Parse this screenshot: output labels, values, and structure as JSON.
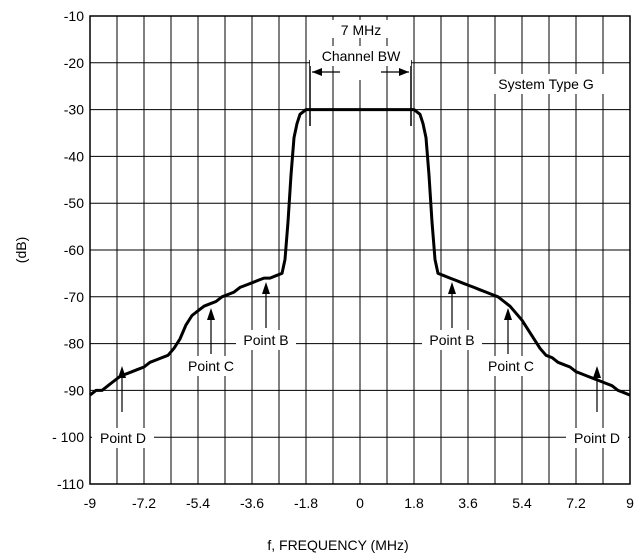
{
  "chart_data": {
    "type": "line",
    "title": "",
    "xlabel": "f, FREQUENCY (MHz)",
    "ylabel": "(dB)",
    "xlim": [
      -9,
      9
    ],
    "ylim": [
      -110,
      -10
    ],
    "x_ticks": [
      "-9",
      "-7.2",
      "-5.4",
      "-3.6",
      "-1.8",
      "0",
      "1.8",
      "3.6",
      "5.4",
      "7.2",
      "9"
    ],
    "y_ticks": [
      "-10",
      "-20",
      "-30",
      "-40",
      "-50",
      "-60",
      "-70",
      "-80",
      "-90",
      "- 100",
      "-110"
    ],
    "grid": true,
    "series": [
      {
        "x": [
          -9.0,
          -8.8,
          -8.6,
          -8.4,
          -8.2,
          -8.0,
          -7.8,
          -7.6,
          -7.4,
          -7.2,
          -7.0,
          -6.8,
          -6.6,
          -6.4,
          -6.2,
          -6.0,
          -5.8,
          -5.6,
          -5.4,
          -5.2,
          -5.0,
          -4.8,
          -4.6,
          -4.4,
          -4.2,
          -4.0,
          -3.8,
          -3.6,
          -3.4,
          -3.2,
          -3.0,
          -2.8,
          -2.6,
          -2.5,
          -2.4,
          -2.3,
          -2.2,
          -2.1,
          -2.0,
          -1.9,
          -1.8,
          -1.5,
          -1.0,
          -0.5,
          0.0,
          0.5,
          1.0,
          1.5,
          1.8,
          1.9,
          2.0,
          2.1,
          2.2,
          2.3,
          2.4,
          2.5,
          2.6,
          2.8,
          3.0,
          3.2,
          3.4,
          3.6,
          3.8,
          4.0,
          4.2,
          4.4,
          4.6,
          4.8,
          5.0,
          5.2,
          5.4,
          5.6,
          5.8,
          6.0,
          6.2,
          6.4,
          6.6,
          6.8,
          7.0,
          7.2,
          7.4,
          7.6,
          7.8,
          8.0,
          8.2,
          8.4,
          8.6,
          8.8,
          9.0
        ],
        "y": [
          -91,
          -90,
          -90,
          -89,
          -88,
          -87,
          -86.5,
          -86,
          -85.5,
          -85,
          -84,
          -83.5,
          -83,
          -82.5,
          -81,
          -79,
          -76,
          -74,
          -73,
          -72,
          -71.5,
          -71,
          -70,
          -69.5,
          -69,
          -68,
          -67.5,
          -67,
          -66.5,
          -66,
          -66,
          -65.5,
          -65,
          -62,
          -54,
          -44,
          -36,
          -33,
          -31,
          -30.5,
          -30,
          -30,
          -30,
          -30,
          -30,
          -30,
          -30,
          -30,
          -30,
          -30.5,
          -31,
          -33,
          -36,
          -44,
          -54,
          -62,
          -65,
          -65.5,
          -66,
          -66.5,
          -67,
          -67.5,
          -68,
          -68.5,
          -69,
          -69.5,
          -70,
          -71,
          -72,
          -73.5,
          -75,
          -77,
          -79,
          -81,
          -82.5,
          -83,
          -84,
          -84.5,
          -85,
          -86,
          -86.5,
          -87,
          -87.5,
          -88,
          -88.5,
          -89,
          -90,
          -90.5,
          -91
        ]
      }
    ],
    "annotations": [
      {
        "text": "System Type G"
      },
      {
        "text": "7 MHz"
      },
      {
        "text": "Channel BW"
      },
      {
        "text": "Point B",
        "x": -2.7,
        "y": -65.5
      },
      {
        "text": "Point C",
        "x": -4.8,
        "y": -71
      },
      {
        "text": "Point D",
        "x": -7.8,
        "y": -86.5
      },
      {
        "text": "Point B",
        "x": 2.7,
        "y": -65.5
      },
      {
        "text": "Point C",
        "x": 4.8,
        "y": -71
      },
      {
        "text": "Point D",
        "x": 7.8,
        "y": -86.5
      }
    ]
  }
}
